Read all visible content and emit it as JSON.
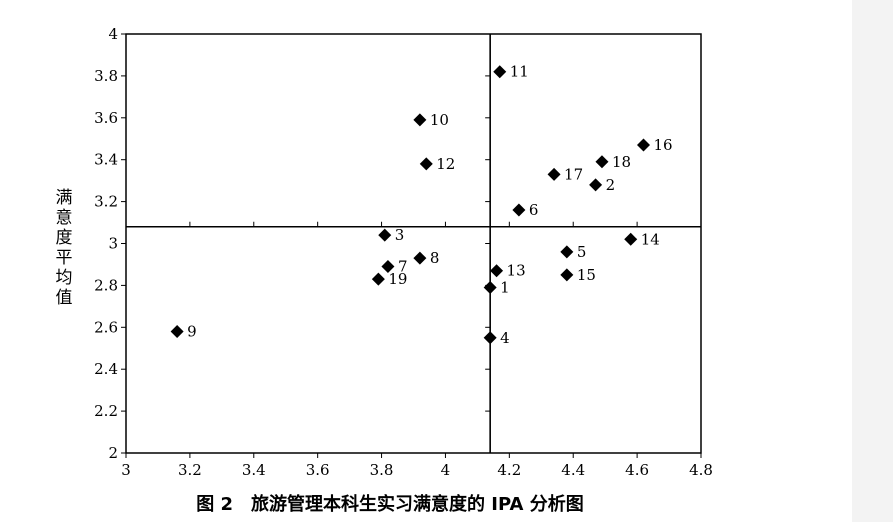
{
  "chart_data": {
    "type": "scatter",
    "title": "图 2　旅游管理本科生实习满意度的 IPA 分析图",
    "xlabel": "",
    "ylabel": "满意度平均值",
    "xlim": [
      3,
      4.8
    ],
    "ylim": [
      2,
      4
    ],
    "xticks": [
      "3",
      "3.2",
      "3.4",
      "3.6",
      "3.8",
      "4",
      "4.2",
      "4.4",
      "4.6",
      "4.8"
    ],
    "yticks": [
      "2",
      "2.2",
      "2.4",
      "2.6",
      "2.8",
      "3",
      "3.2",
      "3.4",
      "3.6",
      "3.8",
      "4"
    ],
    "reference_lines": {
      "x": 4.14,
      "y": 3.08
    },
    "marker": "diamond",
    "marker_color": "#000000",
    "points": [
      {
        "label": "1",
        "x": 4.14,
        "y": 2.79
      },
      {
        "label": "2",
        "x": 4.47,
        "y": 3.28
      },
      {
        "label": "3",
        "x": 3.81,
        "y": 3.04
      },
      {
        "label": "4",
        "x": 4.14,
        "y": 2.55
      },
      {
        "label": "5",
        "x": 4.38,
        "y": 2.96
      },
      {
        "label": "6",
        "x": 4.23,
        "y": 3.16
      },
      {
        "label": "7",
        "x": 3.82,
        "y": 2.89
      },
      {
        "label": "8",
        "x": 3.92,
        "y": 2.93
      },
      {
        "label": "9",
        "x": 3.16,
        "y": 2.58
      },
      {
        "label": "10",
        "x": 3.92,
        "y": 3.59
      },
      {
        "label": "11",
        "x": 4.17,
        "y": 3.82
      },
      {
        "label": "12",
        "x": 3.94,
        "y": 3.38
      },
      {
        "label": "13",
        "x": 4.16,
        "y": 2.87
      },
      {
        "label": "14",
        "x": 4.58,
        "y": 3.02
      },
      {
        "label": "15",
        "x": 4.38,
        "y": 2.85
      },
      {
        "label": "16",
        "x": 4.62,
        "y": 3.47
      },
      {
        "label": "17",
        "x": 4.34,
        "y": 3.33
      },
      {
        "label": "18",
        "x": 4.49,
        "y": 3.39
      },
      {
        "label": "19",
        "x": 3.79,
        "y": 2.83
      }
    ]
  }
}
